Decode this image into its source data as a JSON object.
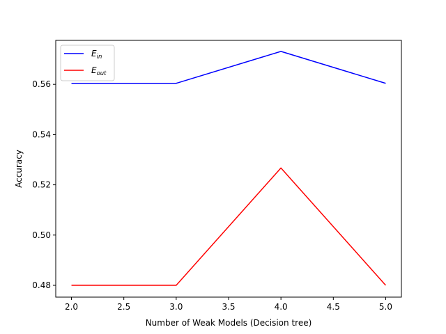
{
  "chart_data": {
    "type": "line",
    "title": "",
    "xlabel": "Number of Weak Models (Decision tree)",
    "ylabel": "Accuracy",
    "x": [
      2.0,
      3.0,
      4.0,
      5.0
    ],
    "xlim": [
      1.85,
      5.15
    ],
    "ylim": [
      0.4753,
      0.5775
    ],
    "xticks": [
      "2.0",
      "2.5",
      "3.0",
      "3.5",
      "4.0",
      "4.5",
      "5.0"
    ],
    "yticks": [
      "0.48",
      "0.50",
      "0.52",
      "0.54",
      "0.56"
    ],
    "grid": false,
    "legend_position": "upper-left",
    "series": [
      {
        "name": "E_in",
        "name_main": "E",
        "name_sub": "in",
        "color": "#0000ff",
        "values": [
          0.5604,
          0.5604,
          0.5731,
          0.5604
        ]
      },
      {
        "name": "E_out",
        "name_main": "E",
        "name_sub": "out",
        "color": "#ff0000",
        "values": [
          0.48,
          0.48,
          0.5267,
          0.48
        ]
      }
    ]
  }
}
